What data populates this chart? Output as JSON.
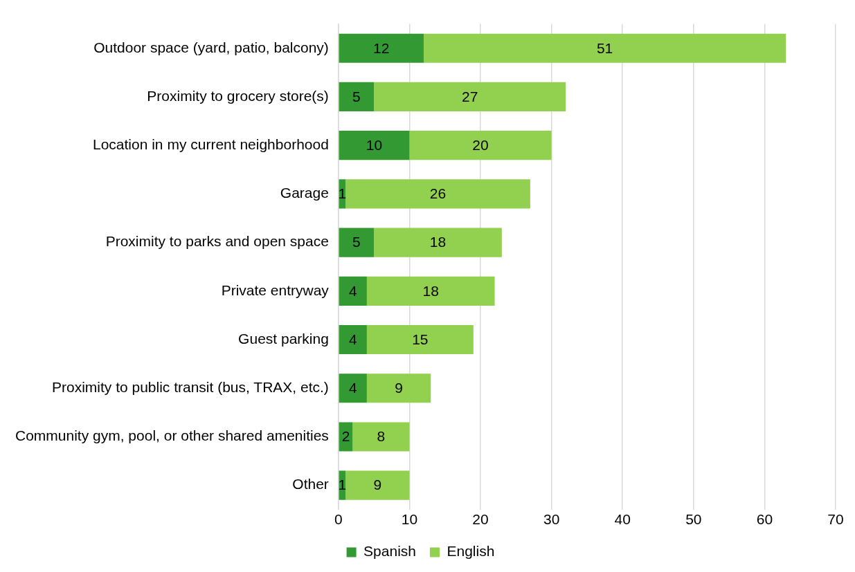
{
  "chart_data": {
    "type": "bar",
    "orientation": "horizontal",
    "stacked": true,
    "categories": [
      "Outdoor space (yard, patio, balcony)",
      "Proximity to grocery store(s)",
      "Location in my current neighborhood",
      "Garage",
      "Proximity to parks and open space",
      "Private entryway",
      "Guest parking",
      "Proximity to public transit (bus, TRAX, etc.)",
      "Community gym, pool, or other shared amenities",
      "Other"
    ],
    "series": [
      {
        "name": "Spanish",
        "color": "#339933",
        "values": [
          12,
          5,
          10,
          1,
          5,
          4,
          4,
          4,
          2,
          1
        ]
      },
      {
        "name": "English",
        "color": "#92d050",
        "values": [
          51,
          27,
          20,
          26,
          18,
          18,
          15,
          9,
          8,
          9
        ]
      }
    ],
    "xlim": [
      0,
      70
    ],
    "xticks": [
      0,
      10,
      20,
      30,
      40,
      50,
      60,
      70
    ],
    "grid": "x",
    "legend": "bottom",
    "data_labels": true
  }
}
